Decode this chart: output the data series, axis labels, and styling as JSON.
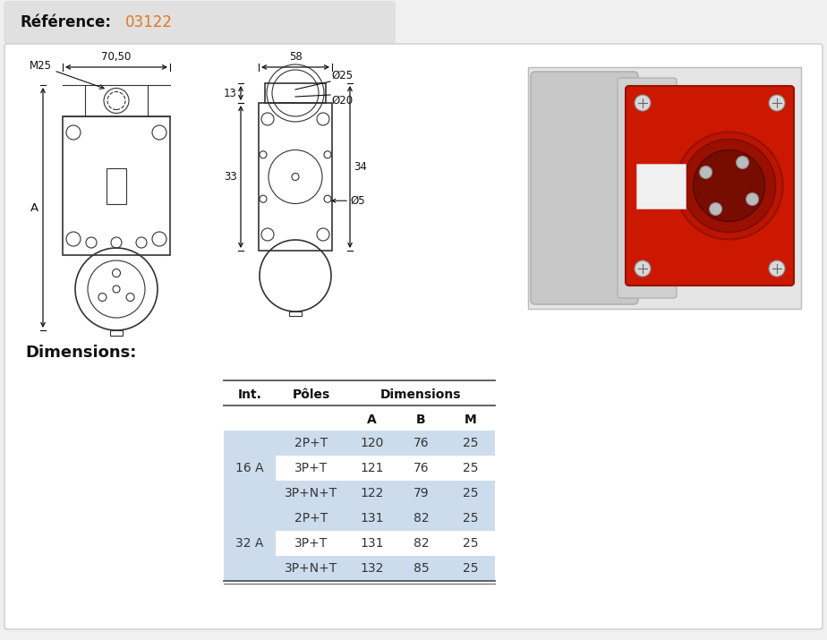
{
  "reference_label": "Référence:",
  "reference_value": "03122",
  "bg_color": "#f0f0f0",
  "header_bg": "#e0e0e0",
  "white_bg": "#ffffff",
  "border_color": "#cccccc",
  "dimensions_title": "Dimensions:",
  "table_data": [
    [
      "16 A",
      "2P+T",
      "120",
      "76",
      "25"
    ],
    [
      "16 A",
      "3P+T",
      "121",
      "76",
      "25"
    ],
    [
      "16 A",
      "3P+N+T",
      "122",
      "79",
      "25"
    ],
    [
      "32 A",
      "2P+T",
      "131",
      "82",
      "25"
    ],
    [
      "32 A",
      "3P+T",
      "131",
      "82",
      "25"
    ],
    [
      "32 A",
      "3P+N+T",
      "132",
      "85",
      "25"
    ]
  ],
  "cell_bg_light": "#cddcec",
  "cell_bg_white": "#ffffff",
  "cell_text_color": "#333333",
  "header_text_color": "#111111",
  "ref_label_color": "#111111",
  "ref_number_color": "#e07820",
  "line_color": "#555555",
  "dim_color": "#111111",
  "draw_color": "#333333",
  "d25": "Ø25",
  "d20": "Ø20",
  "d5": "Ø5",
  "fig_w": 9.24,
  "fig_h": 7.15,
  "dpi": 100
}
